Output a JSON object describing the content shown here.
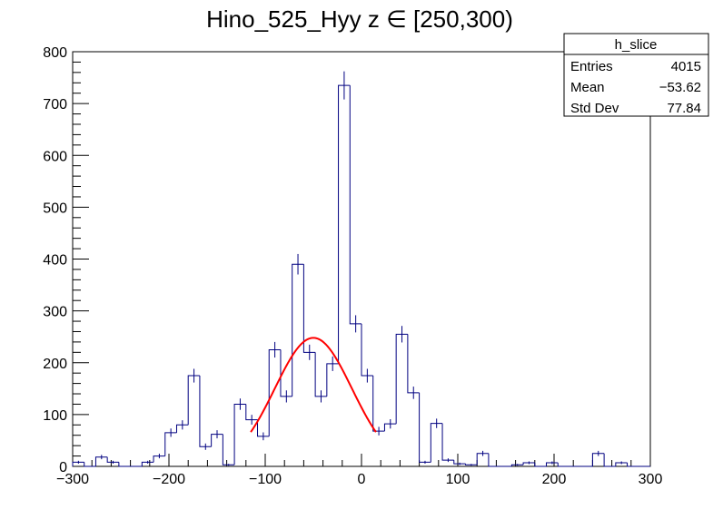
{
  "chart_data": {
    "type": "bar",
    "title": "Hino_525_Hyy z  ∈ [250,300)",
    "xlabel": "",
    "ylabel": "",
    "xlim": [
      -300,
      300
    ],
    "ylim": [
      0,
      800
    ],
    "x_ticks": [
      -300,
      -200,
      -100,
      0,
      100,
      200,
      300
    ],
    "y_ticks": [
      0,
      100,
      200,
      300,
      400,
      500,
      600,
      700,
      800
    ],
    "grid": false,
    "bin_width": 12,
    "bins": [
      {
        "x0": -300,
        "value": 8
      },
      {
        "x0": -288,
        "value": 0
      },
      {
        "x0": -276,
        "value": 18
      },
      {
        "x0": -264,
        "value": 8
      },
      {
        "x0": -252,
        "value": 0
      },
      {
        "x0": -240,
        "value": 0
      },
      {
        "x0": -228,
        "value": 8
      },
      {
        "x0": -216,
        "value": 20
      },
      {
        "x0": -204,
        "value": 65
      },
      {
        "x0": -192,
        "value": 80
      },
      {
        "x0": -180,
        "value": 175
      },
      {
        "x0": -168,
        "value": 38
      },
      {
        "x0": -156,
        "value": 62
      },
      {
        "x0": -144,
        "value": 3
      },
      {
        "x0": -132,
        "value": 120
      },
      {
        "x0": -120,
        "value": 90
      },
      {
        "x0": -108,
        "value": 58
      },
      {
        "x0": -96,
        "value": 225
      },
      {
        "x0": -84,
        "value": 135
      },
      {
        "x0": -72,
        "value": 390
      },
      {
        "x0": -60,
        "value": 220
      },
      {
        "x0": -48,
        "value": 135
      },
      {
        "x0": -36,
        "value": 198
      },
      {
        "x0": -24,
        "value": 735
      },
      {
        "x0": -12,
        "value": 275
      },
      {
        "x0": 0,
        "value": 175
      },
      {
        "x0": 12,
        "value": 68
      },
      {
        "x0": 24,
        "value": 82
      },
      {
        "x0": 36,
        "value": 255
      },
      {
        "x0": 48,
        "value": 142
      },
      {
        "x0": 60,
        "value": 8
      },
      {
        "x0": 72,
        "value": 83
      },
      {
        "x0": 84,
        "value": 12
      },
      {
        "x0": 96,
        "value": 5
      },
      {
        "x0": 108,
        "value": 3
      },
      {
        "x0": 120,
        "value": 25
      },
      {
        "x0": 132,
        "value": 0
      },
      {
        "x0": 144,
        "value": 0
      },
      {
        "x0": 156,
        "value": 3
      },
      {
        "x0": 168,
        "value": 7
      },
      {
        "x0": 180,
        "value": 0
      },
      {
        "x0": 192,
        "value": 7
      },
      {
        "x0": 204,
        "value": 0
      },
      {
        "x0": 216,
        "value": 0
      },
      {
        "x0": 228,
        "value": 0
      },
      {
        "x0": 240,
        "value": 25
      },
      {
        "x0": 252,
        "value": 0
      },
      {
        "x0": 264,
        "value": 7
      },
      {
        "x0": 276,
        "value": 0
      },
      {
        "x0": 288,
        "value": 0
      }
    ],
    "fit": {
      "type": "gaussian",
      "amplitude": 248,
      "mean": -50,
      "sigma": 40,
      "x_range": [
        -115,
        15
      ],
      "color": "#ff0000"
    },
    "histogram_color": "#000080",
    "stats": {
      "name": "h_slice",
      "rows": [
        {
          "label": "Entries",
          "value": "4015"
        },
        {
          "label": "Mean",
          "value": "−53.62"
        },
        {
          "label": "Std Dev",
          "value": "77.84"
        }
      ]
    }
  }
}
